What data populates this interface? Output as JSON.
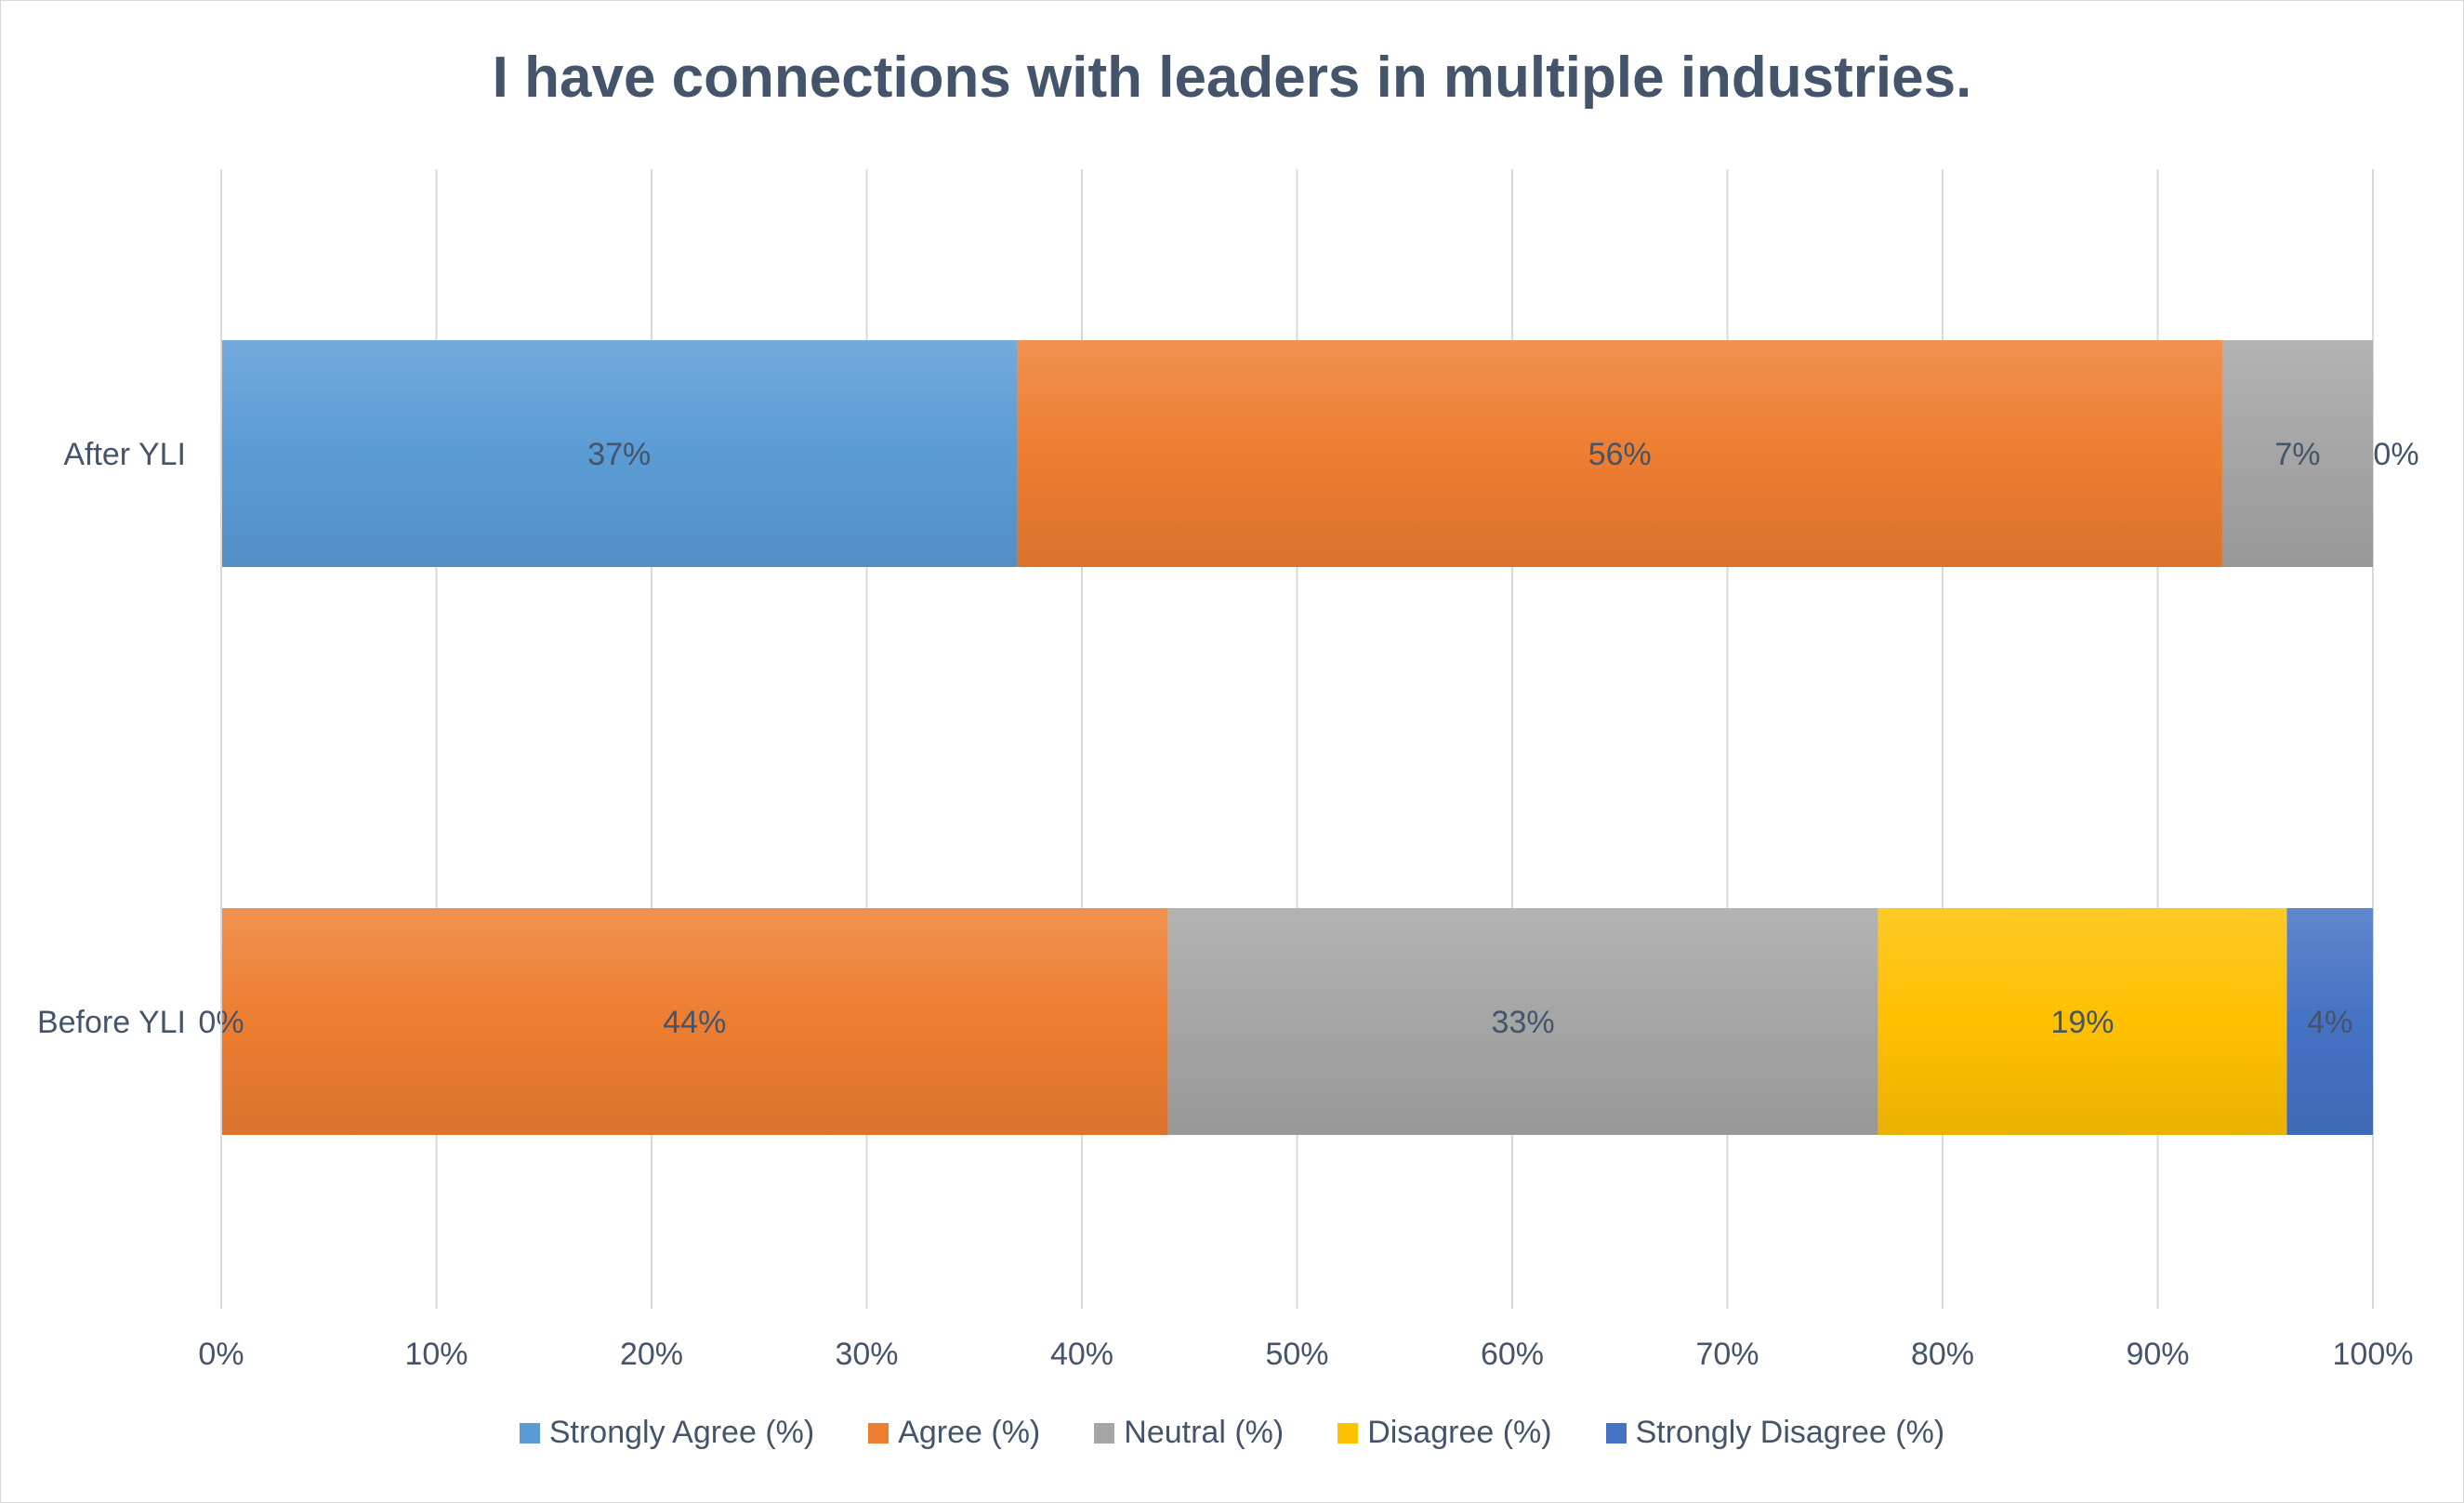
{
  "chart_data": {
    "type": "bar",
    "orientation": "horizontal",
    "stacked": "percent",
    "title": "I have connections with leaders in multiple industries.",
    "xlabel": "",
    "ylabel": "",
    "xlim": [
      0,
      100
    ],
    "x_ticks": [
      "0%",
      "10%",
      "20%",
      "30%",
      "40%",
      "50%",
      "60%",
      "70%",
      "80%",
      "90%",
      "100%"
    ],
    "grid": "vertical",
    "legend_position": "bottom",
    "categories": [
      "After YLI",
      "Before YLI"
    ],
    "series": [
      {
        "name": "Strongly Agree (%)",
        "color": "#5b9bd5",
        "values": [
          37,
          0
        ],
        "labels": [
          "37%",
          "0%"
        ]
      },
      {
        "name": "Agree (%)",
        "color": "#ed7d31",
        "values": [
          56,
          44
        ],
        "labels": [
          "56%",
          "44%"
        ]
      },
      {
        "name": "Neutral (%)",
        "color": "#a5a5a5",
        "values": [
          7,
          33
        ],
        "labels": [
          "7%",
          "33%"
        ]
      },
      {
        "name": "Disagree (%)",
        "color": "#ffc000",
        "values": [
          0,
          19
        ],
        "labels": [
          "0%",
          "19%"
        ]
      },
      {
        "name": "Strongly Disagree (%)",
        "color": "#4472c4",
        "values": [
          0,
          4
        ],
        "labels": [
          "",
          "4%"
        ]
      }
    ]
  }
}
